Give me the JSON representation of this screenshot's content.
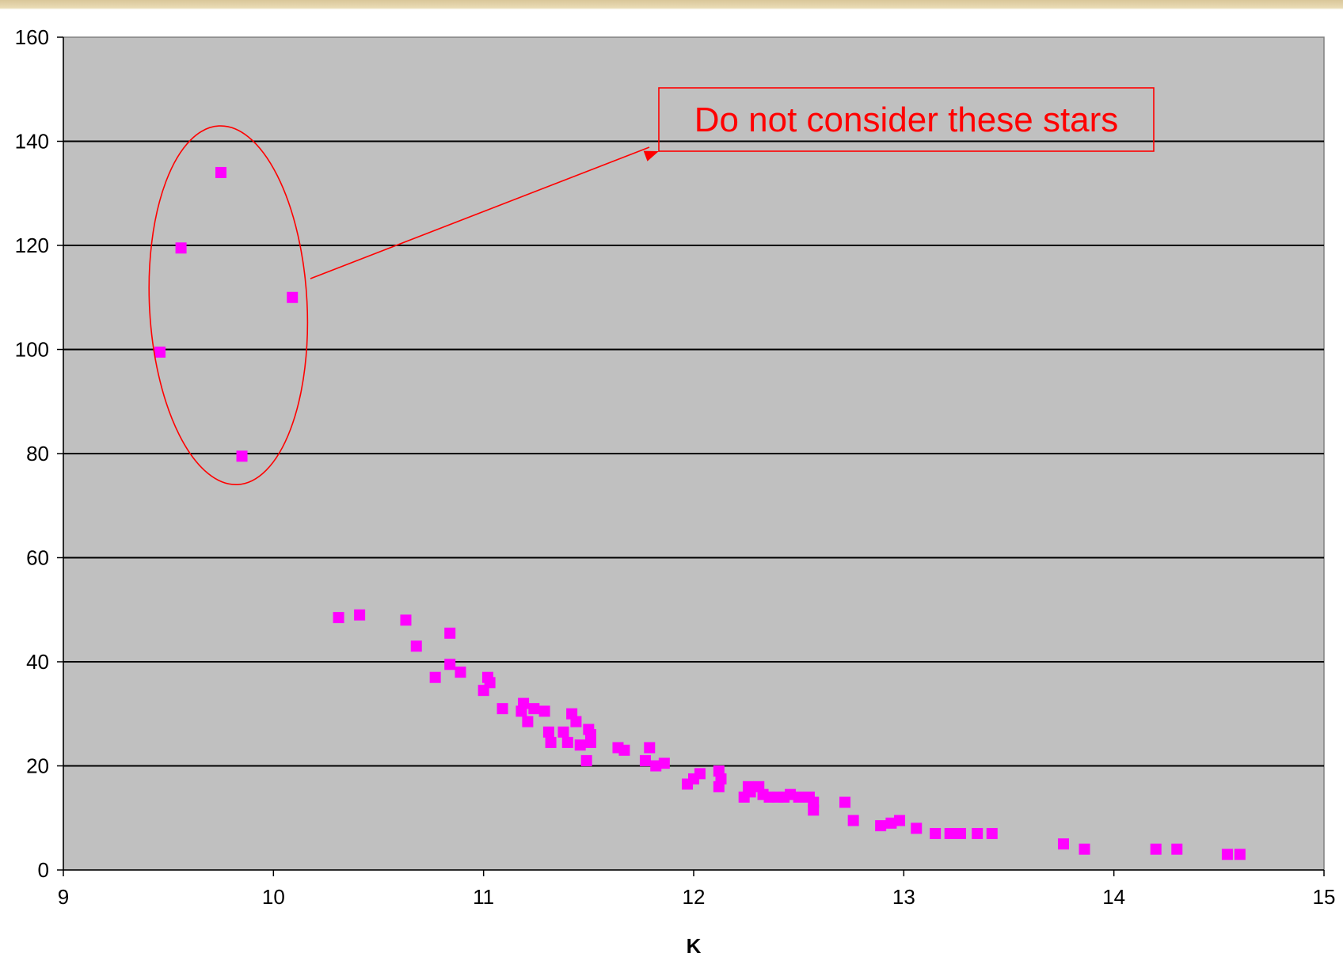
{
  "chart_data": {
    "type": "scatter",
    "title": "",
    "xlabel": "K",
    "ylabel": "",
    "xlim": [
      9,
      15
    ],
    "ylim": [
      0,
      160
    ],
    "x_ticks": [
      9,
      10,
      11,
      12,
      13,
      14,
      15
    ],
    "y_ticks": [
      0,
      20,
      40,
      60,
      80,
      100,
      120,
      140,
      160
    ],
    "grid": "horizontal",
    "plot_background": "#c0c0c0",
    "marker_color": "#ff00ff",
    "marker_shape": "square",
    "series": [
      {
        "points": [
          [
            9.75,
            134
          ],
          [
            9.56,
            119.5
          ],
          [
            10.09,
            110
          ],
          [
            9.46,
            99.5
          ],
          [
            9.85,
            79.5
          ],
          [
            10.31,
            48.5
          ],
          [
            10.41,
            49
          ],
          [
            10.63,
            48
          ],
          [
            10.68,
            43
          ],
          [
            10.84,
            45.5
          ],
          [
            10.84,
            39.5
          ],
          [
            10.89,
            38
          ],
          [
            10.77,
            37
          ],
          [
            11.02,
            37
          ],
          [
            11.03,
            36
          ],
          [
            11.0,
            34.5
          ],
          [
            11.09,
            31
          ],
          [
            11.19,
            32
          ],
          [
            11.18,
            30.5
          ],
          [
            11.24,
            31
          ],
          [
            11.29,
            30.5
          ],
          [
            11.21,
            28.5
          ],
          [
            11.42,
            30
          ],
          [
            11.44,
            28.5
          ],
          [
            11.31,
            26.5
          ],
          [
            11.32,
            24.5
          ],
          [
            11.38,
            26.5
          ],
          [
            11.4,
            24.5
          ],
          [
            11.46,
            24
          ],
          [
            11.5,
            27
          ],
          [
            11.51,
            26
          ],
          [
            11.51,
            24.5
          ],
          [
            11.49,
            21
          ],
          [
            11.64,
            23.5
          ],
          [
            11.67,
            23
          ],
          [
            11.79,
            23.5
          ],
          [
            11.77,
            21
          ],
          [
            11.82,
            20
          ],
          [
            11.86,
            20.5
          ],
          [
            11.97,
            16.5
          ],
          [
            12.0,
            17.5
          ],
          [
            12.03,
            18.5
          ],
          [
            12.12,
            19
          ],
          [
            12.12,
            16
          ],
          [
            12.13,
            17.5
          ],
          [
            12.24,
            14
          ],
          [
            12.26,
            16
          ],
          [
            12.27,
            15
          ],
          [
            12.31,
            16
          ],
          [
            12.33,
            14.5
          ],
          [
            12.36,
            14
          ],
          [
            12.4,
            14
          ],
          [
            12.43,
            14
          ],
          [
            12.46,
            14.5
          ],
          [
            12.5,
            14
          ],
          [
            12.55,
            14
          ],
          [
            12.57,
            13
          ],
          [
            12.57,
            11.5
          ],
          [
            12.72,
            13
          ],
          [
            12.76,
            9.5
          ],
          [
            12.89,
            8.5
          ],
          [
            12.94,
            9
          ],
          [
            12.98,
            9.5
          ],
          [
            13.06,
            8
          ],
          [
            13.15,
            7
          ],
          [
            13.22,
            7
          ],
          [
            13.27,
            7
          ],
          [
            13.35,
            7
          ],
          [
            13.42,
            7
          ],
          [
            13.76,
            5
          ],
          [
            13.86,
            4
          ],
          [
            14.2,
            4
          ],
          [
            14.3,
            4
          ],
          [
            14.54,
            3
          ],
          [
            14.6,
            3
          ]
        ]
      }
    ],
    "annotation": {
      "text": "Do not consider these stars",
      "color": "#ff0000"
    }
  }
}
